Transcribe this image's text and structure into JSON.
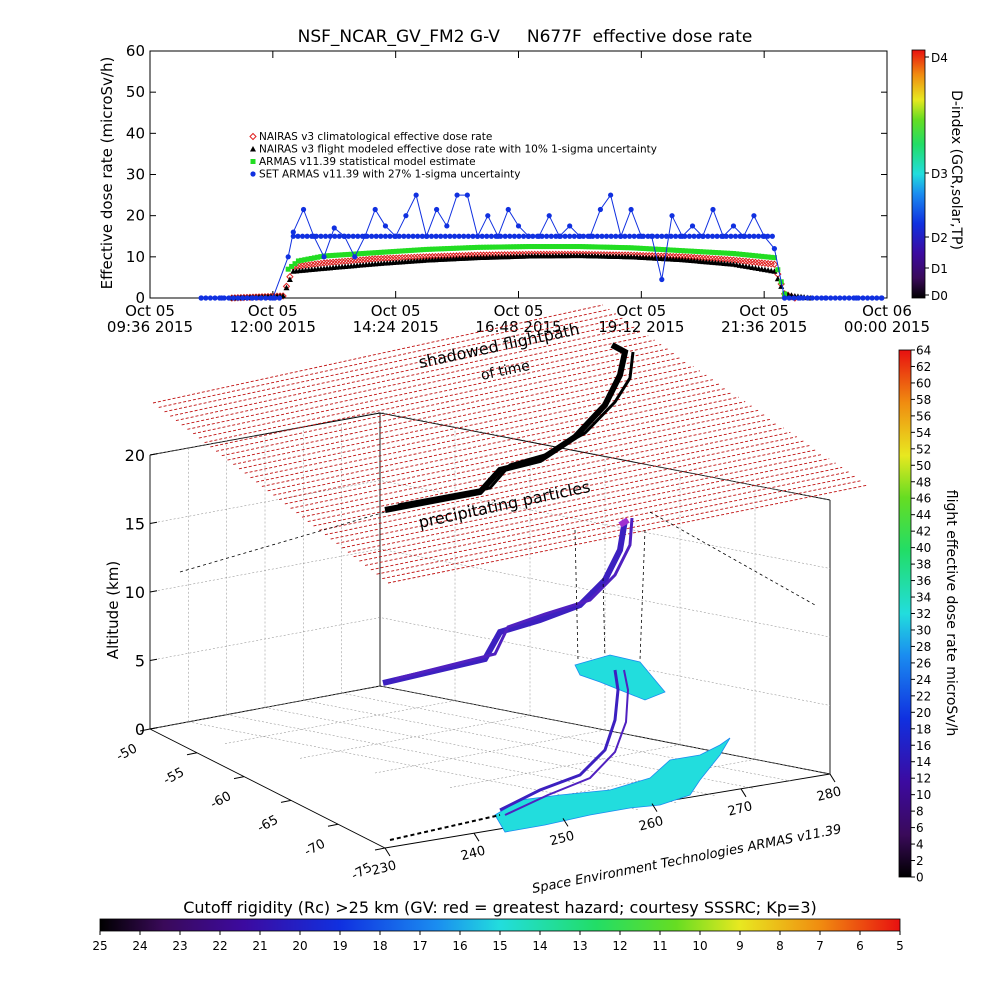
{
  "title": "NSF_NCAR_GV_FM2 G-V     N677F  effective dose rate",
  "top_chart": {
    "chart_data": {
      "type": "scatter",
      "xlabel": "",
      "ylabel": "Effective dose rate (microSv/h)",
      "ylim": [
        0,
        60
      ],
      "yticks": [
        0,
        10,
        20,
        30,
        40,
        50,
        60
      ],
      "xtick_labels": [
        {
          "line1": "Oct 05",
          "line2": "09:36 2015"
        },
        {
          "line1": "Oct 05",
          "line2": "12:00 2015"
        },
        {
          "line1": "Oct 05",
          "line2": "14:24 2015"
        },
        {
          "line1": "Oct 05",
          "line2": "16:48 2015"
        },
        {
          "line1": "Oct 05",
          "line2": "19:12 2015"
        },
        {
          "line1": "Oct 05",
          "line2": "21:36 2015"
        },
        {
          "line1": "Oct 06",
          "line2": "00:00 2015"
        }
      ],
      "x_hours": [
        9.6,
        12.0,
        14.4,
        16.8,
        19.2,
        21.6,
        24.0
      ],
      "xlim_hours": [
        9.6,
        24.0
      ],
      "legend": [
        {
          "marker": "diamond",
          "color": "#e02020",
          "label": "NAIRAS v3 climatological effective dose rate"
        },
        {
          "marker": "triangle",
          "color": "#000000",
          "label": "NAIRAS v3 flight modeled effective dose rate with 10% 1-sigma uncertainty"
        },
        {
          "marker": "square",
          "color": "#22dd22",
          "label": "ARMAS v11.39 statistical model estimate"
        },
        {
          "marker": "circle",
          "color": "#1030e0",
          "label": "SET ARMAS v11.39 with 27% 1-sigma uncertainty"
        }
      ],
      "legend_position": "upper-left",
      "series": [
        {
          "name": "NAIRAS v3 climatological effective dose rate",
          "color": "#e02020",
          "x": [
            11.2,
            12.2,
            12.4,
            13.0,
            14.0,
            15.0,
            16.0,
            17.0,
            18.0,
            19.0,
            20.0,
            21.0,
            21.8,
            22.0,
            22.2
          ],
          "y": [
            0,
            0.5,
            7.5,
            8.5,
            9.5,
            10.0,
            10.4,
            10.6,
            10.6,
            10.4,
            10.0,
            9.2,
            8.2,
            1.0,
            0
          ]
        },
        {
          "name": "NAIRAS v3 flight modeled effective dose rate with 10% 1-sigma uncertainty",
          "color": "#000000",
          "x": [
            11.2,
            12.2,
            12.4,
            13.0,
            14.0,
            15.0,
            16.0,
            17.0,
            18.0,
            19.0,
            20.0,
            21.0,
            21.8,
            22.0,
            22.2,
            22.5
          ],
          "y": [
            0,
            0.5,
            6.5,
            7.2,
            8.3,
            9.2,
            9.8,
            10.2,
            10.3,
            10.0,
            9.3,
            8.2,
            6.5,
            1.0,
            0.5,
            0
          ]
        },
        {
          "name": "ARMAS v11.39 statistical model estimate",
          "color": "#22dd22",
          "x": [
            12.3,
            12.5,
            13.0,
            14.0,
            15.0,
            16.0,
            17.0,
            18.0,
            19.0,
            20.0,
            21.0,
            21.8,
            22.0
          ],
          "y": [
            7.0,
            9.0,
            10.2,
            11.0,
            11.8,
            12.3,
            12.5,
            12.5,
            12.2,
            11.5,
            10.8,
            9.8,
            1.0
          ]
        },
        {
          "name": "SET ARMAS v11.39 with 27% 1-sigma uncertainty",
          "color": "#1030e0",
          "x": [
            10.6,
            11.0,
            11.6,
            12.0,
            12.3,
            12.4,
            12.6,
            12.8,
            13.0,
            13.2,
            13.4,
            13.6,
            13.8,
            14.0,
            14.2,
            14.4,
            14.6,
            14.8,
            15.0,
            15.2,
            15.4,
            15.6,
            15.8,
            16.0,
            16.2,
            16.4,
            16.6,
            16.8,
            17.0,
            17.2,
            17.4,
            17.6,
            17.8,
            18.0,
            18.2,
            18.4,
            18.6,
            18.8,
            19.0,
            19.2,
            19.4,
            19.6,
            19.8,
            20.0,
            20.2,
            20.4,
            20.6,
            20.8,
            21.0,
            21.2,
            21.4,
            21.6,
            21.8,
            22.0,
            22.3,
            22.8,
            23.4,
            23.9
          ],
          "y": [
            0,
            0,
            0,
            0,
            10,
            16,
            21.5,
            15,
            10,
            17,
            15,
            10,
            15,
            21.5,
            17.5,
            15,
            20,
            25,
            15,
            21.5,
            17.5,
            25,
            25,
            15,
            20,
            15,
            21.5,
            17.5,
            15,
            15,
            20,
            15,
            17.5,
            15,
            15,
            21.5,
            25,
            15,
            21.5,
            15,
            15,
            4.5,
            20,
            15,
            17.5,
            15,
            21.5,
            15,
            17.5,
            15,
            20,
            15,
            12,
            0,
            0,
            0,
            0,
            0
          ]
        }
      ]
    },
    "colorbar": {
      "label": "D-index (GCR,solar,TP)",
      "tick_labels": [
        "D0",
        "D1",
        "D2",
        "D3",
        "D4"
      ]
    }
  },
  "bottom_chart": {
    "chart_data": {
      "type": "scatter",
      "zlabel": "Altitude (km)",
      "zticks": [
        0,
        5,
        10,
        15,
        20
      ],
      "lat_ticks": [
        -50,
        -55,
        -60,
        -65,
        -70,
        -75
      ],
      "lon_ticks": [
        230,
        240,
        250,
        260,
        270,
        280
      ],
      "annotations": [
        "shadowed flightpath",
        "of time",
        "precipitating particles"
      ],
      "credit": "Space Environment Technologies ARMAS v11.39"
    },
    "right_colorbar": {
      "label": "flight effective dose rate microSv/h",
      "range": [
        0,
        64
      ],
      "tick_labels": [
        "0",
        "2",
        "4",
        "6",
        "8",
        "10",
        "12",
        "14",
        "16",
        "18",
        "20",
        "22",
        "24",
        "26",
        "28",
        "30",
        "32",
        "34",
        "36",
        "38",
        "40",
        "42",
        "44",
        "46",
        "48",
        "50",
        "52",
        "54",
        "56",
        "58",
        "60",
        "62",
        "64"
      ]
    },
    "bottom_colorbar": {
      "label": "Cutoff rigidity (Rc) >25 km (GV: red = greatest hazard; courtesy SSSRC; Kp=3)",
      "tick_labels": [
        "25",
        "24",
        "23",
        "22",
        "21",
        "20",
        "19",
        "18",
        "17",
        "16",
        "15",
        "14",
        "13",
        "12",
        "11",
        "10",
        "9",
        "8",
        "7",
        "6",
        "5"
      ]
    }
  }
}
